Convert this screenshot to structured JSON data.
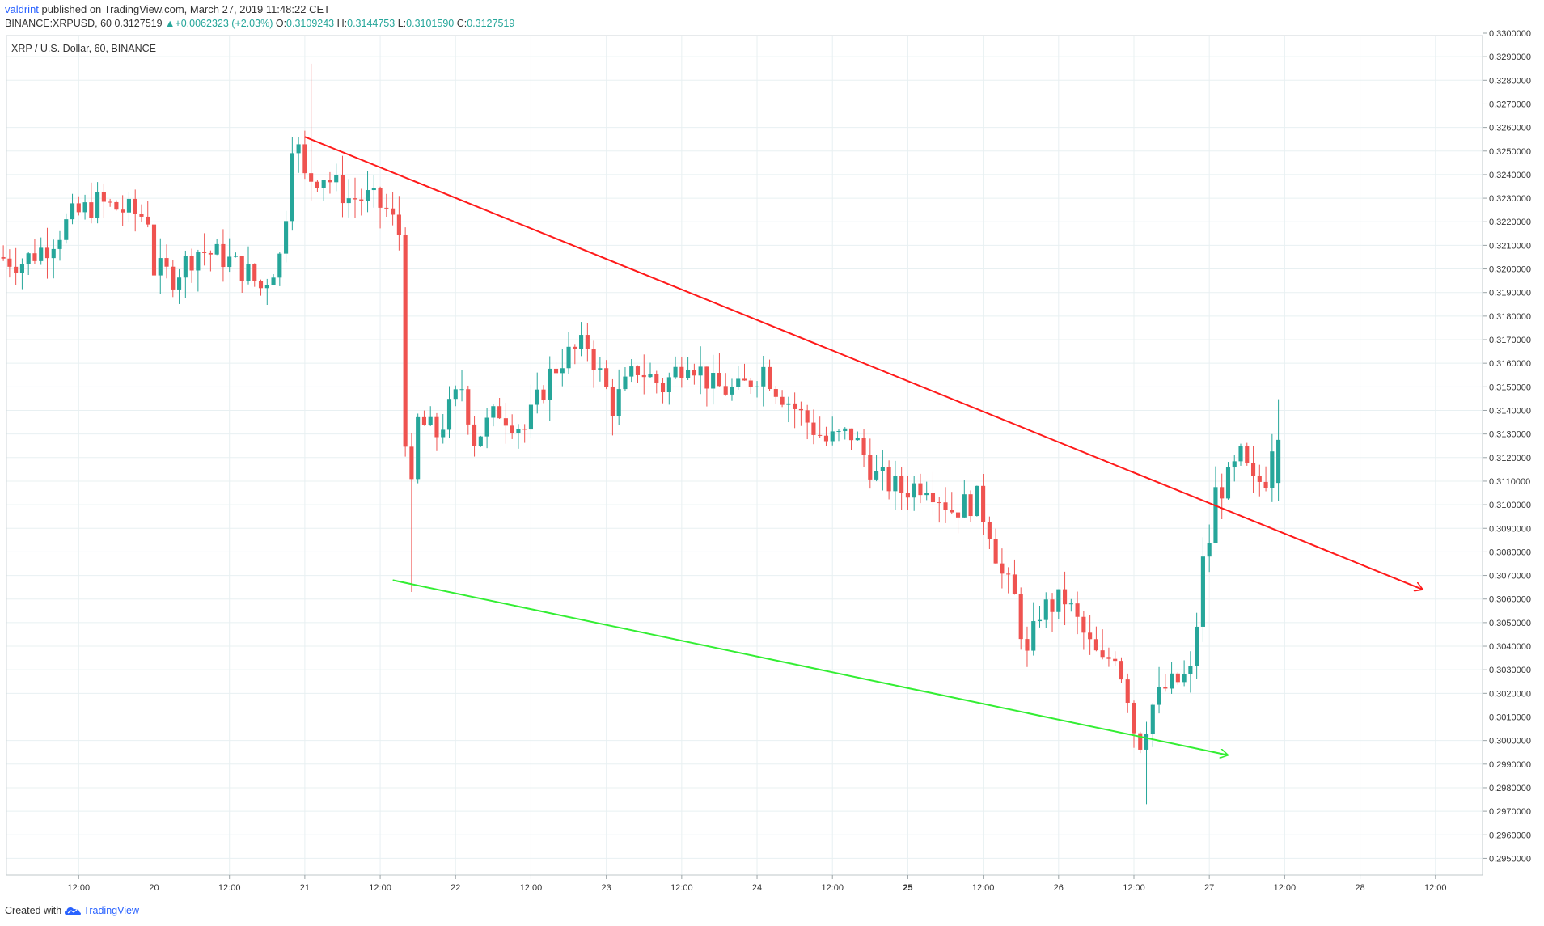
{
  "header": {
    "author": "valdrint",
    "published_text": "published on TradingView.com, March 27, 2019 11:48:22 CET",
    "symbol": "BINANCE:XRPUSD, 60",
    "last_price": "0.3127519",
    "change": "+0.0062323 (+2.03%)",
    "open_label": "O:",
    "open": "0.3109243",
    "high_label": "H:",
    "high": "0.3144753",
    "low_label": "L:",
    "low": "0.3101590",
    "close_label": "C:",
    "close": "0.3127519"
  },
  "chart_title": "XRP / U.S. Dollar, 60, BINANCE",
  "footer": {
    "created_with": "Created with",
    "brand": "TradingView"
  },
  "colors": {
    "up": "#26a69a",
    "down": "#ef5350",
    "resistance": "#ff1a1a",
    "support": "#33ee33",
    "grid": "#e8f0f2"
  },
  "chart_data": {
    "type": "candlestick",
    "interval": "60",
    "ylim": [
      0.2945,
      0.33
    ],
    "y_ticks": [
      "0.3300000",
      "0.3290000",
      "0.3280000",
      "0.3270000",
      "0.3260000",
      "0.3250000",
      "0.3240000",
      "0.3230000",
      "0.3220000",
      "0.3210000",
      "0.3200000",
      "0.3190000",
      "0.3180000",
      "0.3170000",
      "0.3160000",
      "0.3150000",
      "0.3140000",
      "0.3130000",
      "0.3120000",
      "0.3110000",
      "0.3100000",
      "0.3090000",
      "0.3080000",
      "0.3070000",
      "0.3060000",
      "0.3050000",
      "0.3040000",
      "0.3030000",
      "0.3020000",
      "0.3010000",
      "0.3000000",
      "0.2990000",
      "0.2980000",
      "0.2970000",
      "0.2960000",
      "0.2950000"
    ],
    "x_ticks": [
      "12:00",
      "20",
      "12:00",
      "21",
      "12:00",
      "22",
      "12:00",
      "23",
      "12:00",
      "24",
      "12:00",
      "25",
      "12:00",
      "26",
      "12:00",
      "27",
      "12:00",
      "28",
      "12:00"
    ],
    "x_tick_hours": [
      12,
      24,
      36,
      48,
      60,
      72,
      84,
      96,
      108,
      120,
      132,
      144,
      156,
      168,
      180,
      192,
      204,
      216,
      228
    ],
    "x_range_hours": [
      0.5,
      235.5
    ],
    "keypoints": [
      [
        0,
        0.3205
      ],
      [
        4,
        0.3203
      ],
      [
        8,
        0.321
      ],
      [
        12,
        0.3222
      ],
      [
        16,
        0.3228
      ],
      [
        20,
        0.3225
      ],
      [
        24,
        0.3222
      ],
      [
        25,
        0.32
      ],
      [
        28,
        0.3197
      ],
      [
        32,
        0.3208
      ],
      [
        36,
        0.3205
      ],
      [
        40,
        0.3198
      ],
      [
        42,
        0.3192
      ],
      [
        45,
        0.3205
      ],
      [
        46,
        0.3225
      ],
      [
        47,
        0.3255
      ],
      [
        48,
        0.325
      ],
      [
        49,
        0.3238
      ],
      [
        52,
        0.324
      ],
      [
        56,
        0.323
      ],
      [
        59,
        0.323
      ],
      [
        62,
        0.3225
      ],
      [
        64,
        0.3215
      ],
      [
        65,
        0.313
      ],
      [
        66,
        0.3105
      ],
      [
        67,
        0.3135
      ],
      [
        70,
        0.313
      ],
      [
        74,
        0.315
      ],
      [
        76,
        0.3128
      ],
      [
        80,
        0.314
      ],
      [
        84,
        0.3132
      ],
      [
        88,
        0.3155
      ],
      [
        90,
        0.3162
      ],
      [
        94,
        0.3168
      ],
      [
        98,
        0.3142
      ],
      [
        102,
        0.3158
      ],
      [
        106,
        0.315
      ],
      [
        110,
        0.3163
      ],
      [
        114,
        0.315
      ],
      [
        118,
        0.3148
      ],
      [
        122,
        0.3158
      ],
      [
        124,
        0.315
      ],
      [
        128,
        0.3138
      ],
      [
        132,
        0.3127
      ],
      [
        136,
        0.313
      ],
      [
        140,
        0.3112
      ],
      [
        144,
        0.3106
      ],
      [
        148,
        0.311
      ],
      [
        152,
        0.3098
      ],
      [
        156,
        0.3102
      ],
      [
        158,
        0.309
      ],
      [
        160,
        0.307
      ],
      [
        162,
        0.306
      ],
      [
        164,
        0.3035
      ],
      [
        166,
        0.3055
      ],
      [
        170,
        0.306
      ],
      [
        174,
        0.304
      ],
      [
        176,
        0.3032
      ],
      [
        178,
        0.3038
      ],
      [
        180,
        0.302
      ],
      [
        181,
        0.3005
      ],
      [
        182,
        0.3
      ],
      [
        184,
        0.3015
      ],
      [
        186,
        0.3022
      ],
      [
        188,
        0.3025
      ],
      [
        190,
        0.3028
      ],
      [
        191,
        0.305
      ],
      [
        192,
        0.3075
      ],
      [
        193,
        0.3085
      ],
      [
        194,
        0.3105
      ],
      [
        196,
        0.311
      ],
      [
        198,
        0.312
      ],
      [
        200,
        0.3108
      ],
      [
        202,
        0.3112
      ],
      [
        203,
        0.3127
      ]
    ],
    "resistance_line": {
      "from": [
        48,
        0.3256
      ],
      "to": [
        226,
        0.3064
      ]
    },
    "support_line": {
      "from": [
        62,
        0.3068
      ],
      "to": [
        195,
        0.29938
      ]
    }
  }
}
